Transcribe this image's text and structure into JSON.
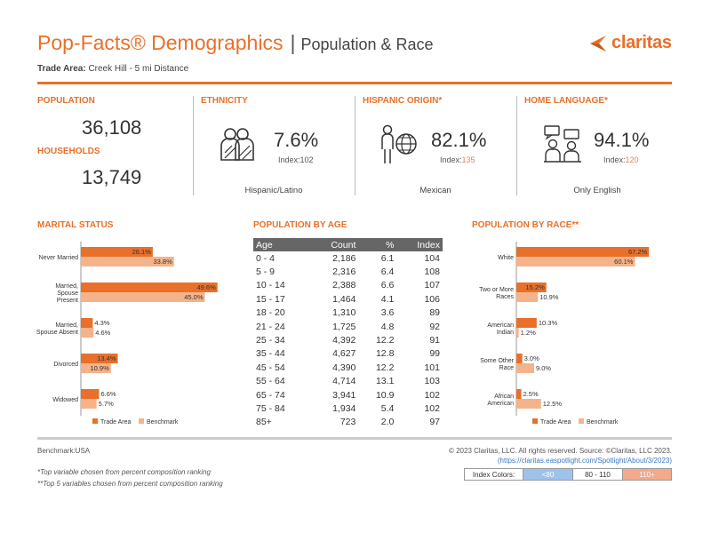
{
  "header": {
    "title_main": "Pop-Facts® Demographics",
    "title_sep": "|",
    "title_sub": "Population & Race",
    "trade_area_label": "Trade Area:",
    "trade_area_value": "Creek Hill - 5 mi Distance",
    "logo_text": "claritas"
  },
  "colors": {
    "accent": "#e8702a",
    "trade_area": "#e8702a",
    "benchmark": "#f4b38a",
    "low": "#9dc3ec",
    "mid": "#ffffff",
    "high": "#f2a98c"
  },
  "summary": {
    "population_label": "POPULATION",
    "population_value": "36,108",
    "households_label": "HOUSEHOLDS",
    "households_value": "13,749",
    "ethnicity": {
      "label": "ETHNICITY",
      "pct": "7.6%",
      "index_label": "Index:",
      "index_value": "102",
      "caption": "Hispanic/Latino",
      "icon": "people-group-icon"
    },
    "hispanic": {
      "label": "HISPANIC ORIGIN*",
      "pct": "82.1%",
      "index_label": "Index:",
      "index_value": "135",
      "caption": "Mexican",
      "icon": "person-globe-icon"
    },
    "language": {
      "label": "HOME LANGUAGE*",
      "pct": "94.1%",
      "index_label": "Index:",
      "index_value": "120",
      "caption": "Only English",
      "icon": "conversation-icon"
    }
  },
  "marital": {
    "title": "MARITAL STATUS",
    "legend": [
      "Trade Area",
      "Benchmark"
    ]
  },
  "race": {
    "title": "POPULATION BY RACE**",
    "legend": [
      "Trade Area",
      "Benchmark"
    ]
  },
  "chart_data": [
    {
      "type": "bar",
      "orientation": "horizontal",
      "title": "MARITAL STATUS",
      "categories": [
        "Never Married",
        "Married, Spouse Present",
        "Married, Spouse Absent",
        "Divorced",
        "Widowed"
      ],
      "category_lines": [
        [
          "Never Married"
        ],
        [
          "Married,",
          "Spouse",
          "Present"
        ],
        [
          "Married,",
          "Spouse Absent"
        ],
        [
          "Divorced"
        ],
        [
          "Widowed"
        ]
      ],
      "series": [
        {
          "name": "Trade Area",
          "values": [
            26.1,
            49.6,
            4.3,
            13.4,
            6.6
          ],
          "labels": [
            "26.1%",
            "49.6%",
            "4.3%",
            "13.4%",
            "6.6%"
          ]
        },
        {
          "name": "Benchmark",
          "values": [
            33.8,
            45.0,
            4.6,
            10.9,
            5.7
          ],
          "labels": [
            "33.8%",
            "45.0%",
            "4.6%",
            "10.9%",
            "5.7%"
          ]
        }
      ],
      "xlim": [
        0,
        50
      ]
    },
    {
      "type": "table",
      "title": "POPULATION BY AGE",
      "columns": [
        "Age",
        "Count",
        "%",
        "Index"
      ],
      "rows": [
        [
          "0 - 4",
          "2,186",
          "6.1",
          "104"
        ],
        [
          "5 - 9",
          "2,316",
          "6.4",
          "108"
        ],
        [
          "10 - 14",
          "2,388",
          "6.6",
          "107"
        ],
        [
          "15 - 17",
          "1,464",
          "4.1",
          "106"
        ],
        [
          "18 - 20",
          "1,310",
          "3.6",
          "89"
        ],
        [
          "21 - 24",
          "1,725",
          "4.8",
          "92"
        ],
        [
          "25 - 34",
          "4,392",
          "12.2",
          "91"
        ],
        [
          "35 - 44",
          "4,627",
          "12.8",
          "99"
        ],
        [
          "45 - 54",
          "4,390",
          "12.2",
          "101"
        ],
        [
          "55 - 64",
          "4,714",
          "13.1",
          "103"
        ],
        [
          "65 - 74",
          "3,941",
          "10.9",
          "102"
        ],
        [
          "75 - 84",
          "1,934",
          "5.4",
          "102"
        ],
        [
          "85+",
          "723",
          "2.0",
          "97"
        ]
      ]
    },
    {
      "type": "bar",
      "orientation": "horizontal",
      "title": "POPULATION BY RACE**",
      "categories": [
        "White",
        "Two or More Races",
        "American Indian",
        "Some Other Race",
        "African American"
      ],
      "category_lines": [
        [
          "White"
        ],
        [
          "Two or More",
          "Races"
        ],
        [
          "American",
          "Indian"
        ],
        [
          "Some Other",
          "Race"
        ],
        [
          "African",
          "American"
        ]
      ],
      "series": [
        {
          "name": "Trade Area",
          "values": [
            67.2,
            15.2,
            10.3,
            3.0,
            2.5
          ],
          "labels": [
            "67.2%",
            "15.2%",
            "10.3%",
            "3.0%",
            "2.5%"
          ]
        },
        {
          "name": "Benchmark",
          "values": [
            60.1,
            10.9,
            1.2,
            9.0,
            12.5
          ],
          "labels": [
            "60.1%",
            "10.9%",
            "1.2%",
            "9.0%",
            "12.5%"
          ]
        }
      ],
      "xlim": [
        0,
        68
      ]
    }
  ],
  "age": {
    "title": "POPULATION BY AGE"
  },
  "footer": {
    "benchmark": "Benchmark:USA",
    "note1": "*Top variable chosen from percent composition ranking",
    "note2": "**Top 5 variables chosen from percent composition ranking",
    "copyright": "© 2023 Claritas, LLC. All rights reserved. Source: ©Claritas, LLC 2023.",
    "link": "(https://claritas.easpotlight.com/Spotlight/About/3/2023)",
    "index_colors_label": "Index Colors:",
    "index_low": "<80",
    "index_mid": "80 - 110",
    "index_high": "110+"
  }
}
